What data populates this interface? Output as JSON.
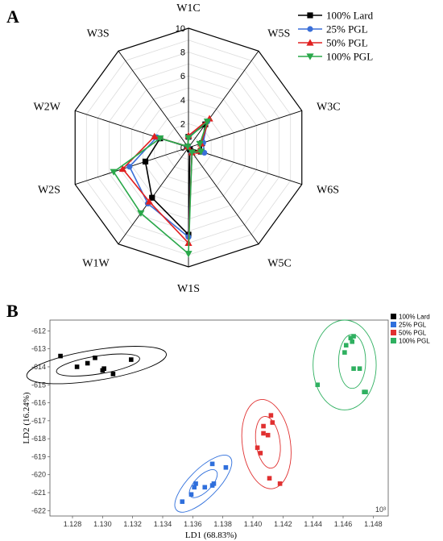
{
  "panels": {
    "a": "A",
    "b": "B"
  },
  "chart_data": [
    {
      "type": "radar",
      "axes": [
        "W1C",
        "W5S",
        "W3C",
        "W6S",
        "W5C",
        "W1S",
        "W1W",
        "W2S",
        "W2W",
        "W3S"
      ],
      "r_ticks": [
        "0",
        "2",
        "4",
        "6",
        "8",
        "10"
      ],
      "rlim": [
        0,
        10
      ],
      "legend_position": "top-right",
      "series": [
        {
          "name": "100% Lard",
          "color": "#000000",
          "marker": "square",
          "values": [
            0.9,
            2.4,
            1.2,
            1.1,
            0.2,
            7.3,
            5.2,
            3.8,
            2.5,
            0.1
          ]
        },
        {
          "name": "25% PGL",
          "color": "#3a6fd8",
          "marker": "circle",
          "values": [
            0.9,
            2.7,
            1.3,
            1.4,
            0.5,
            7.5,
            5.8,
            5.2,
            2.8,
            0.1
          ]
        },
        {
          "name": "50% PGL",
          "color": "#e02020",
          "marker": "triangle-up",
          "values": [
            1.0,
            3.0,
            1.1,
            0.9,
            0.5,
            8.0,
            5.6,
            5.8,
            3.0,
            0.1
          ]
        },
        {
          "name": "100% PGL",
          "color": "#2aa84a",
          "marker": "triangle-down",
          "values": [
            0.8,
            2.7,
            1.0,
            1.1,
            0.5,
            8.9,
            6.8,
            6.6,
            2.5,
            0.1
          ]
        }
      ]
    },
    {
      "type": "scatter",
      "xlabel": "LD1 (68.83%)",
      "ylabel": "LD2 (16.24%)",
      "x_tick_labels": [
        "1.128",
        "1.130",
        "1.132",
        "1.134",
        "1.136",
        "1.138",
        "1.140",
        "1.142",
        "1.144",
        "1.146",
        "1.148"
      ],
      "y_tick_labels": [
        "-612",
        "-613",
        "-614",
        "-615",
        "-616",
        "-617",
        "-618",
        "-619",
        "-620",
        "-621",
        "-622"
      ],
      "x_multiplier": "10³",
      "xlim": [
        1.1265,
        1.149
      ],
      "ylim": [
        -622.3,
        -611.4
      ],
      "legend_position": "top-right",
      "series": [
        {
          "name": "100% Lard",
          "color": "#000000",
          "x": [
            1.1272,
            1.1283,
            1.129,
            1.1295,
            1.13,
            1.1301,
            1.1307,
            1.1319
          ],
          "y": [
            -613.4,
            -614.0,
            -613.8,
            -613.5,
            -614.2,
            -614.1,
            -614.4,
            -613.6
          ],
          "ellipses": [
            {
              "cx": 1.1297,
              "cy": -613.9,
              "rx": 0.0028,
              "ry": 0.5,
              "angle": -9
            },
            {
              "cx": 1.1296,
              "cy": -613.9,
              "rx": 0.0047,
              "ry": 0.85,
              "angle": -9
            }
          ]
        },
        {
          "name": "25% PGL",
          "color": "#2f6fdc",
          "x": [
            1.1353,
            1.1359,
            1.1361,
            1.1362,
            1.1368,
            1.1373,
            1.1374,
            1.1373,
            1.1382
          ],
          "y": [
            -621.5,
            -621.1,
            -620.7,
            -620.5,
            -620.7,
            -620.6,
            -620.5,
            -619.4,
            -619.6
          ],
          "ellipses": [
            {
              "cx": 1.1367,
              "cy": -620.5,
              "rx": 0.0012,
              "ry": 0.45,
              "angle": -45
            },
            {
              "cx": 1.1367,
              "cy": -620.5,
              "rx": 0.0025,
              "ry": 0.8,
              "angle": -45
            }
          ]
        },
        {
          "name": "50% PGL",
          "color": "#e03030",
          "x": [
            1.1403,
            1.1405,
            1.1407,
            1.1407,
            1.141,
            1.1412,
            1.1413,
            1.1411,
            1.1418
          ],
          "y": [
            -618.5,
            -618.8,
            -617.7,
            -617.3,
            -617.8,
            -616.7,
            -617.1,
            -620.2,
            -620.5
          ],
          "ellipses": [
            {
              "cx": 1.141,
              "cy": -618.2,
              "rx": 0.0008,
              "ry": 1.45,
              "angle": -8
            },
            {
              "cx": 1.1409,
              "cy": -618.3,
              "rx": 0.0016,
              "ry": 2.5,
              "angle": -8
            }
          ]
        },
        {
          "name": "100% PGL",
          "color": "#2fb060",
          "x": [
            1.1443,
            1.1461,
            1.1462,
            1.1465,
            1.1466,
            1.1467,
            1.1467,
            1.1471,
            1.1474,
            1.1475
          ],
          "y": [
            -615.0,
            -613.2,
            -612.8,
            -612.4,
            -612.6,
            -614.1,
            -612.3,
            -614.1,
            -615.4,
            -615.4
          ],
          "ellipses": [
            {
              "cx": 1.1466,
              "cy": -613.7,
              "rx": 0.0009,
              "ry": 1.5,
              "angle": 0
            },
            {
              "cx": 1.1461,
              "cy": -613.9,
              "rx": 0.0021,
              "ry": 2.5,
              "angle": 0
            }
          ]
        }
      ]
    }
  ]
}
